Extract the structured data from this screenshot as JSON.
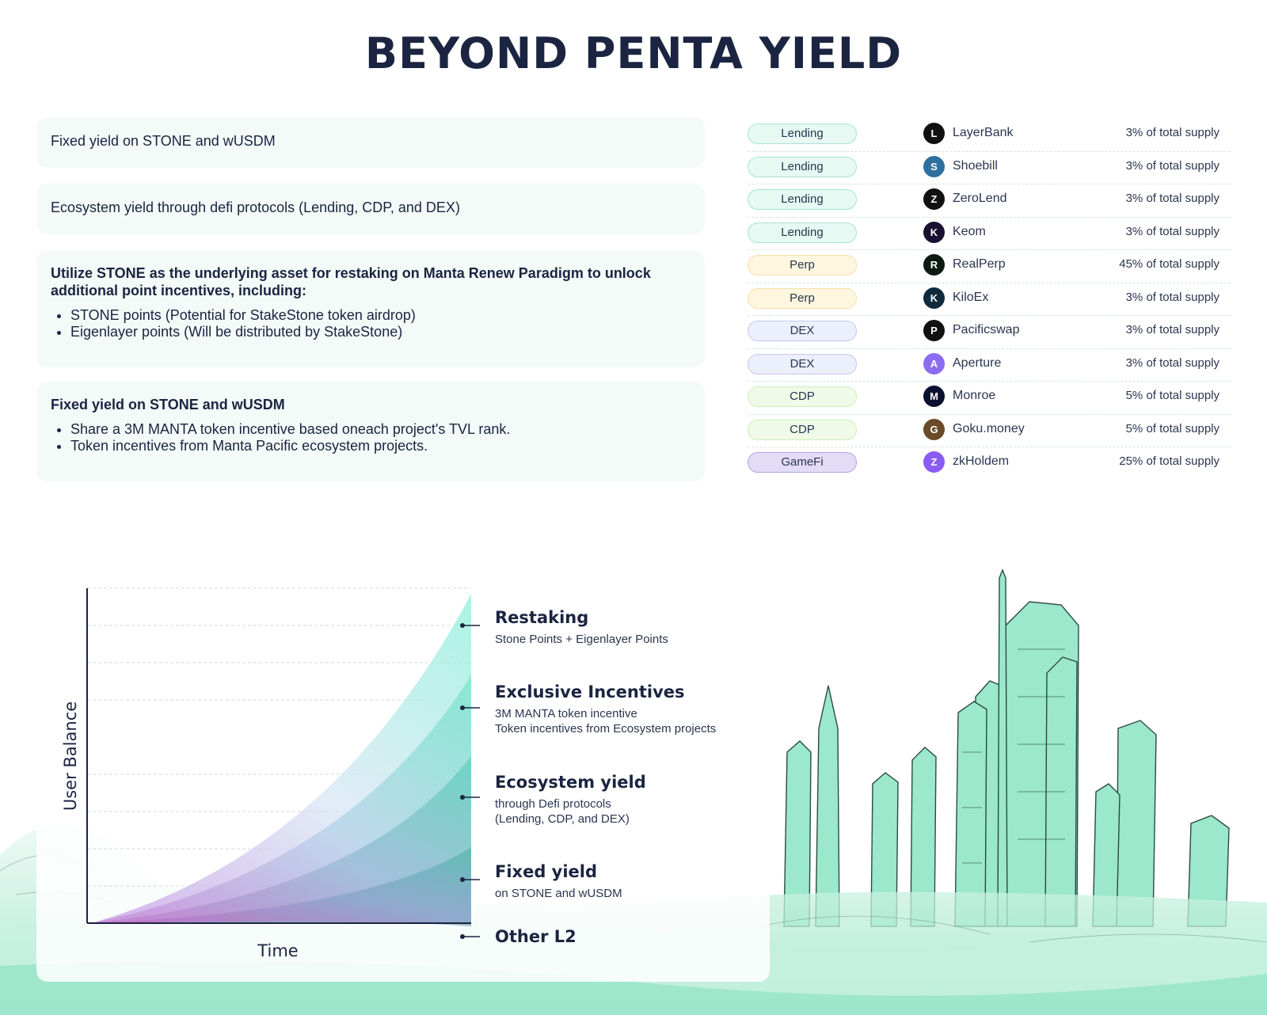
{
  "title": "BEYOND PENTA YIELD",
  "cards": [
    {
      "text": "Fixed yield on STONE and wUSDM"
    },
    {
      "text": "Ecosystem yield through defi protocols (Lending, CDP, and DEX)"
    },
    {
      "heading": "Utilize STONE as the underlying asset for restaking on Manta Renew Paradigm to unlock additional point incentives, including:",
      "bullets": [
        "STONE points (Potential for StakeStone token airdrop)",
        "Eigenlayer points (Will be distributed by StakeStone)"
      ]
    },
    {
      "heading": "Fixed yield on STONE and wUSDM",
      "bullets": [
        "Share a 3M MANTA token incentive based oneach project's TVL rank.",
        "Token incentives from Manta Pacific ecosystem projects."
      ]
    }
  ],
  "protocols": [
    {
      "category": "Lending",
      "style": "lending",
      "name": "LayerBank",
      "supply": "3% of total supply",
      "logo_color": "#111111"
    },
    {
      "category": "Lending",
      "style": "lending",
      "name": "Shoebill",
      "supply": "3% of total supply",
      "logo_color": "#2e6f9e"
    },
    {
      "category": "Lending",
      "style": "lending",
      "name": "ZeroLend",
      "supply": "3% of total supply",
      "logo_color": "#111111"
    },
    {
      "category": "Lending",
      "style": "lending",
      "name": "Keom",
      "supply": "3% of total supply",
      "logo_color": "#1a1030"
    },
    {
      "category": "Perp",
      "style": "perp",
      "name": "RealPerp",
      "supply": "45% of total supply",
      "logo_color": "#0c1a12"
    },
    {
      "category": "Perp",
      "style": "perp",
      "name": "KiloEx",
      "supply": "3% of total supply",
      "logo_color": "#0f2a3d"
    },
    {
      "category": "DEX",
      "style": "dex",
      "name": "Pacificswap",
      "supply": "3% of total supply",
      "logo_color": "#111111"
    },
    {
      "category": "DEX",
      "style": "dex",
      "name": "Aperture",
      "supply": "3% of total supply",
      "logo_color": "#8c6cf0"
    },
    {
      "category": "CDP",
      "style": "cdp",
      "name": "Monroe",
      "supply": "5% of total supply",
      "logo_color": "#0a1030"
    },
    {
      "category": "CDP",
      "style": "cdp",
      "name": "Goku.money",
      "supply": "5% of total supply",
      "logo_color": "#6b4a2a"
    },
    {
      "category": "GameFi",
      "style": "gamefi",
      "name": "zkHoldem",
      "supply": "25% of total supply",
      "logo_color": "#8a5cf5"
    }
  ],
  "chart": {
    "ylabel": "User Balance",
    "xlabel": "Time",
    "layers": [
      {
        "title": "Restaking",
        "sub1": "Stone Points + Eigenlayer Points",
        "sub2": ""
      },
      {
        "title": "Exclusive Incentives",
        "sub1": "3M MANTA token incentive",
        "sub2": "Token incentives from Ecosystem projects"
      },
      {
        "title": "Ecosystem yield",
        "sub1": "through Defi protocols",
        "sub2": "(Lending, CDP, and DEX)"
      },
      {
        "title": "Fixed yield",
        "sub1": "on STONE and wUSDM",
        "sub2": ""
      },
      {
        "title": "Other L2",
        "sub1": "",
        "sub2": ""
      }
    ]
  }
}
